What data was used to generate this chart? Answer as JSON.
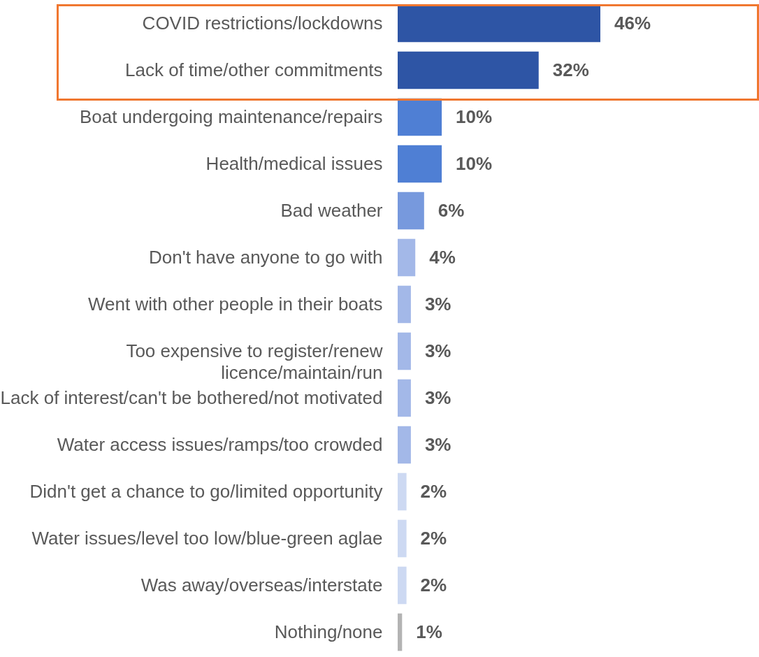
{
  "chart_data": {
    "type": "bar",
    "orientation": "horizontal",
    "categories": [
      "COVID restrictions/lockdowns",
      "Lack of time/other commitments",
      "Boat undergoing maintenance/repairs",
      "Health/medical issues",
      "Bad weather",
      "Don't have anyone to go with",
      "Went with other people in their boats",
      "Too expensive to register/renew\nlicence/maintain/run",
      "Lack of interest/can't be bothered/not motivated",
      "Water access issues/ramps/too crowded",
      "Didn't get a chance to go/limited opportunity",
      "Water issues/level too low/blue-green aglae",
      "Was away/overseas/interstate",
      "Nothing/none"
    ],
    "values": [
      46,
      32,
      10,
      10,
      6,
      4,
      3,
      3,
      3,
      3,
      2,
      2,
      2,
      1
    ],
    "value_labels": [
      "46%",
      "32%",
      "10%",
      "10%",
      "6%",
      "4%",
      "3%",
      "3%",
      "3%",
      "3%",
      "2%",
      "2%",
      "2%",
      "1%"
    ],
    "colors": [
      "#2e55a5",
      "#2e55a5",
      "#4f7fd4",
      "#4f7fd4",
      "#7799dd",
      "#a3b8e8",
      "#a3b8e8",
      "#a3b8e8",
      "#a3b8e8",
      "#a3b8e8",
      "#cdd9f2",
      "#cdd9f2",
      "#cdd9f2",
      "#b3b3b3"
    ],
    "legend": false
  }
}
